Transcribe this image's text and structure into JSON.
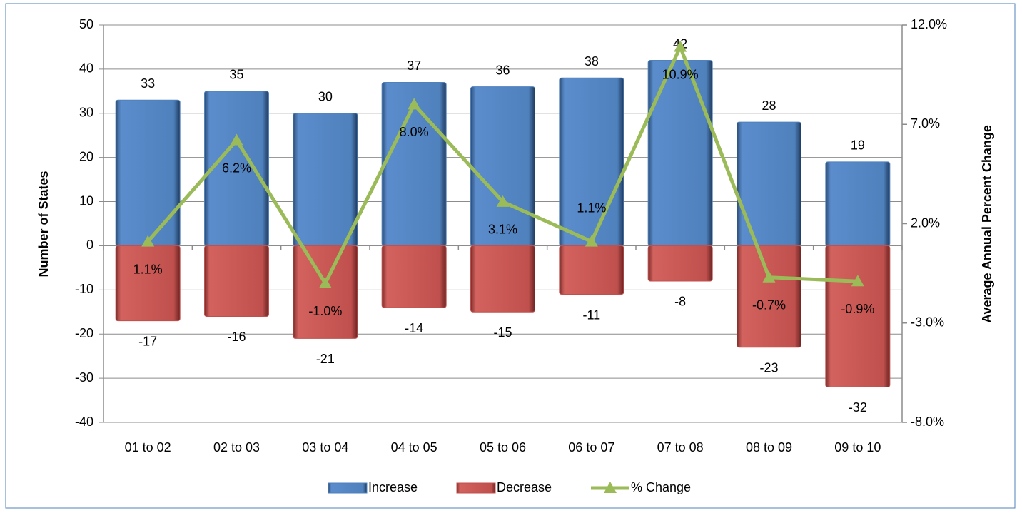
{
  "chart_data": {
    "type": "bar",
    "categories": [
      "01 to 02",
      "02 to 03",
      "03 to 04",
      "04 to 05",
      "05 to 06",
      "06 to 07",
      "07 to 08",
      "08 to 09",
      "09 to 10"
    ],
    "series": [
      {
        "name": "Increase",
        "color": "#4f81bd",
        "values": [
          33,
          35,
          30,
          37,
          36,
          38,
          42,
          28,
          19
        ]
      },
      {
        "name": "Decrease",
        "color": "#c0504d",
        "values": [
          -17,
          -16,
          -21,
          -14,
          -15,
          -11,
          -8,
          -23,
          -32
        ]
      },
      {
        "name": "% Change",
        "color": "#9bbb59",
        "axis": "y2",
        "type": "line",
        "values": [
          1.1,
          6.2,
          -1.0,
          8.0,
          3.1,
          1.1,
          10.9,
          -0.7,
          -0.9
        ],
        "value_labels": [
          "1.1%",
          "6.2%",
          "-1.0%",
          "8.0%",
          "3.1%",
          "1.1%",
          "10.9%",
          "-0.7%",
          "-0.9%"
        ]
      }
    ],
    "ylabel": "Number of States",
    "y2label": "Average Annual Percent Change",
    "ylim": [
      -40,
      50
    ],
    "yticks": [
      -40,
      -30,
      -20,
      -10,
      0,
      10,
      20,
      30,
      40,
      50
    ],
    "y2lim": [
      -8,
      12
    ],
    "y2ticks": [
      {
        "value": -8,
        "label": "-8.0%"
      },
      {
        "value": -3,
        "label": "-3.0%"
      },
      {
        "value": 2,
        "label": "2.0%"
      },
      {
        "value": 7,
        "label": "7.0%"
      },
      {
        "value": 12,
        "label": "12.0%"
      }
    ],
    "grid": true,
    "legend": "bottom"
  }
}
